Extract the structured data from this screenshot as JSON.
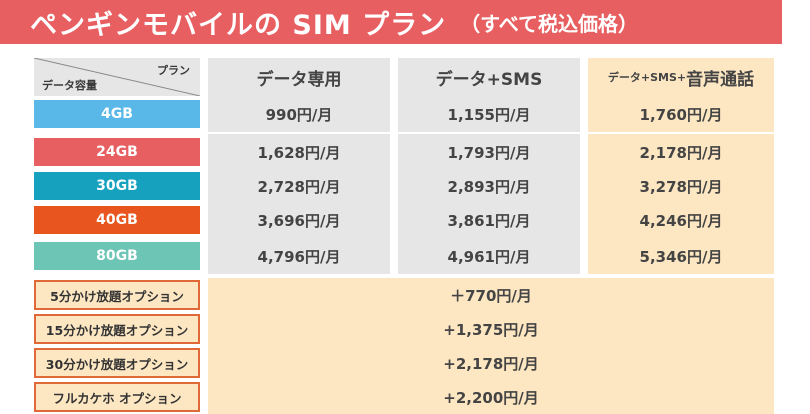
{
  "title": {
    "main": "ペンギンモバイルの SIM プラン",
    "sub": "（すべて税込価格）"
  },
  "header": {
    "corner_plan": "プラン",
    "corner_capacity": "データ容量",
    "col1": "データ専用",
    "col2": "データ+SMS",
    "col3_small": "データ+SMS+",
    "col3_big": "音声通話"
  },
  "rows": [
    {
      "gb": "4GB",
      "color": "#5ab8e8",
      "p1": "990円/月",
      "p2": "1,155円/月",
      "p3": "1,760円/月"
    },
    {
      "gb": "24GB",
      "color": "#e85f61",
      "p1": "1,628円/月",
      "p2": "1,793円/月",
      "p3": "2,178円/月"
    },
    {
      "gb": "30GB",
      "color": "#16a1bf",
      "p1": "2,728円/月",
      "p2": "2,893円/月",
      "p3": "3,278円/月"
    },
    {
      "gb": "40GB",
      "color": "#e8551f",
      "p1": "3,696円/月",
      "p2": "3,861円/月",
      "p3": "4,246円/月"
    },
    {
      "gb": "80GB",
      "color": "#6cc5b5",
      "p1": "4,796円/月",
      "p2": "4,961円/月",
      "p3": "5,346円/月"
    }
  ],
  "options": [
    {
      "label": "5分かけ放題オプション",
      "price": "＋770円/月"
    },
    {
      "label": "15分かけ放題オプション",
      "price": "+1,375円/月"
    },
    {
      "label": "30分かけ放題オプション",
      "price": "+2,178円/月"
    },
    {
      "label": "フルカケホ オプション",
      "price": "+2,200円/月"
    }
  ]
}
